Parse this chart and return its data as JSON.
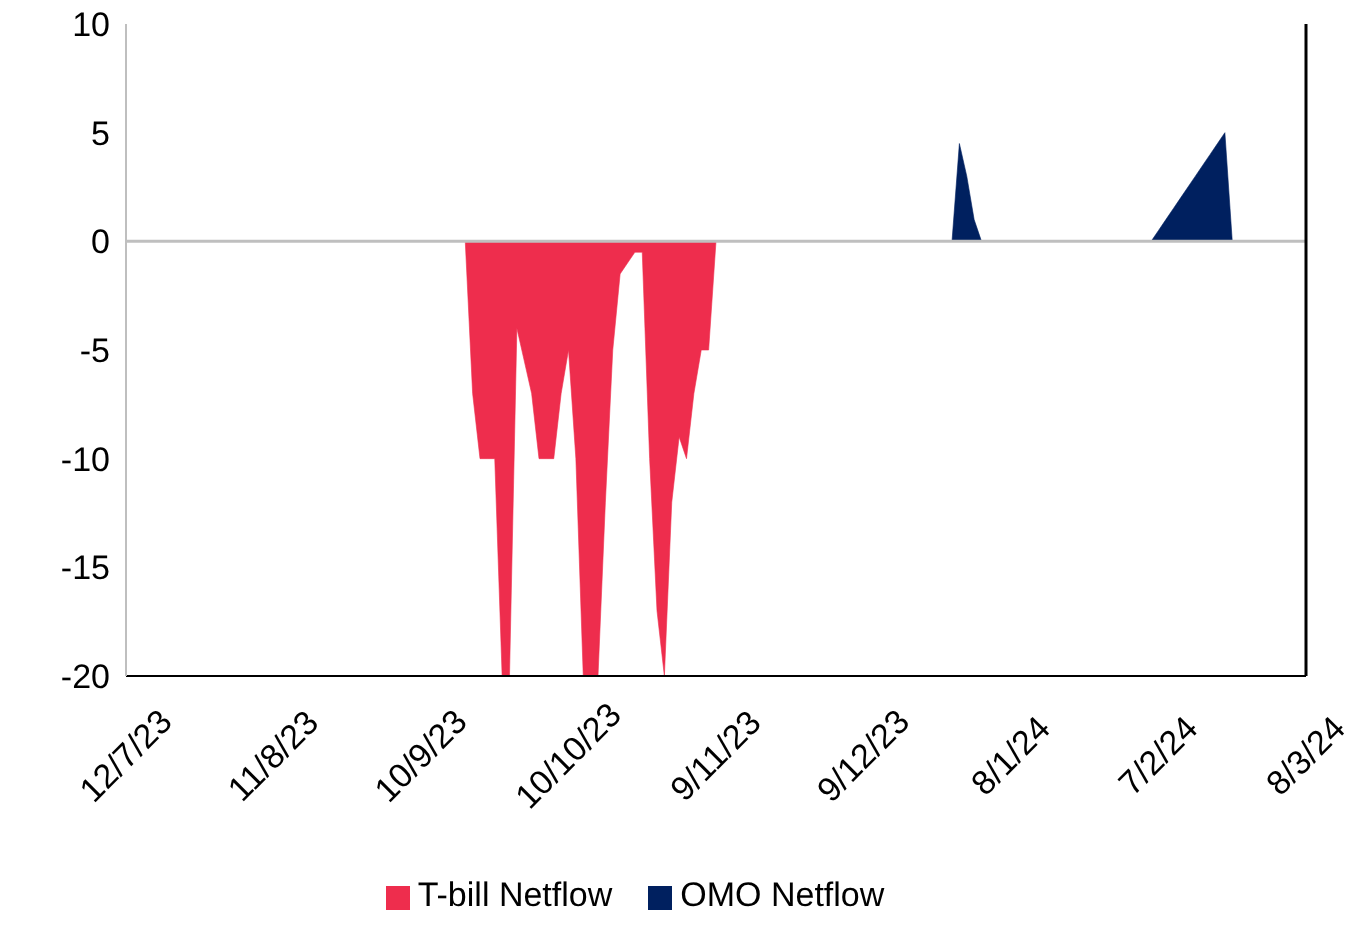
{
  "chart_data": {
    "type": "area",
    "categories": [
      "12/7/23",
      null,
      null,
      null,
      null,
      null,
      null,
      null,
      null,
      null,
      null,
      null,
      null,
      null,
      null,
      null,
      null,
      null,
      null,
      null,
      "11/8/23",
      null,
      null,
      null,
      null,
      null,
      null,
      null,
      null,
      null,
      null,
      null,
      null,
      null,
      null,
      null,
      null,
      null,
      null,
      null,
      "10/9/23",
      null,
      null,
      null,
      null,
      null,
      null,
      null,
      null,
      null,
      null,
      null,
      null,
      null,
      null,
      null,
      null,
      null,
      null,
      null,
      "10/10/23",
      null,
      null,
      null,
      null,
      null,
      null,
      null,
      null,
      null,
      null,
      null,
      null,
      null,
      null,
      null,
      null,
      null,
      null,
      null,
      "9/11/23",
      null,
      null,
      null,
      null,
      null,
      null,
      null,
      null,
      null,
      null,
      null,
      null,
      null,
      null,
      null,
      null,
      null,
      null,
      null,
      "9/12/23",
      null,
      null,
      null,
      null,
      null,
      null,
      null,
      null,
      null,
      null,
      null,
      null,
      null,
      null,
      null,
      null,
      null,
      null,
      null,
      "8/1/24",
      null,
      null,
      null,
      null,
      null,
      null,
      null,
      null,
      null,
      null,
      null,
      null,
      null,
      null,
      null,
      null,
      null,
      null,
      null,
      "7/2/24",
      null,
      null,
      null,
      null,
      null,
      null,
      null,
      null,
      null,
      null,
      null,
      null,
      null,
      null,
      null,
      null,
      null,
      null,
      null,
      "8/3/24"
    ],
    "ylim": [
      -20,
      10
    ],
    "yticks": [
      -20,
      -15,
      -10,
      -5,
      0,
      5,
      10
    ],
    "legend": "bottom",
    "series": [
      {
        "name": "T-bill Netflow",
        "color": "#ee2d4d",
        "values": [
          0,
          0,
          0,
          0,
          0,
          0,
          0,
          0,
          0,
          0,
          0,
          0,
          0,
          0,
          0,
          0,
          0,
          0,
          0,
          0,
          0,
          0,
          0,
          0,
          0,
          0,
          0,
          0,
          0,
          0,
          0,
          0,
          0,
          0,
          0,
          0,
          0,
          0,
          0,
          0,
          0,
          0,
          0,
          0,
          0,
          0,
          0,
          -7,
          -10,
          -10,
          -10,
          -20,
          -20,
          -4,
          -5.5,
          -7,
          -10,
          -10,
          -10,
          -7,
          -5,
          -10,
          -20,
          -20,
          -20,
          -12,
          -5,
          -1.5,
          -1,
          -0.5,
          -0.5,
          -10,
          -17,
          -20,
          -12,
          -9,
          -10,
          -7,
          -5,
          -5,
          0,
          0,
          0,
          0,
          0,
          0,
          0,
          0,
          0,
          0,
          0,
          0,
          0,
          0,
          0,
          0,
          0,
          0,
          0,
          0,
          0,
          0,
          0,
          0,
          0,
          0,
          0,
          0,
          0,
          0,
          0,
          0,
          0,
          0,
          0,
          0,
          0,
          0,
          0,
          0,
          0,
          0,
          0,
          0,
          0,
          0,
          0,
          0,
          0,
          0,
          0,
          0,
          0,
          0,
          0,
          0,
          0,
          0,
          0,
          0,
          0,
          0,
          0,
          0,
          0,
          0,
          0,
          0,
          0,
          0,
          0,
          0,
          0,
          0,
          0,
          0,
          0,
          0,
          0,
          0,
          0
        ]
      },
      {
        "name": "OMO Netflow",
        "color": "#00205f",
        "values": [
          0,
          0,
          0,
          0,
          0,
          0,
          0,
          0,
          0,
          0,
          0,
          0,
          0,
          0,
          0,
          0,
          0,
          0,
          0,
          0,
          0,
          0,
          0,
          0,
          0,
          0,
          0,
          0,
          0,
          0,
          0,
          0,
          0,
          0,
          0,
          0,
          0,
          0,
          0,
          0,
          0,
          0,
          0,
          0,
          0,
          0,
          0,
          0,
          0,
          0,
          0,
          0,
          0,
          0,
          0,
          0,
          0,
          0,
          0,
          0,
          0,
          0,
          0,
          0,
          0,
          0,
          0,
          0,
          0,
          0,
          0,
          0,
          0,
          0,
          0,
          0,
          0,
          0,
          0,
          0,
          0,
          0,
          0,
          0,
          0,
          0,
          0,
          0,
          0,
          0,
          0,
          0,
          0,
          0,
          0,
          0,
          0,
          0,
          0,
          0,
          0,
          0,
          0,
          0,
          0,
          0,
          0,
          0,
          0,
          0,
          0,
          0,
          0,
          4.5,
          3,
          1,
          0,
          0,
          0,
          0,
          0,
          0,
          0,
          0,
          0,
          0,
          0,
          0,
          0,
          0,
          0,
          0,
          0,
          0,
          0,
          0,
          0,
          0,
          0,
          0,
          0.5,
          1,
          1.5,
          2,
          2.5,
          3,
          3.5,
          4,
          4.5,
          5,
          0,
          0,
          0,
          0,
          0,
          0,
          0,
          0,
          0,
          0,
          0
        ]
      }
    ]
  }
}
